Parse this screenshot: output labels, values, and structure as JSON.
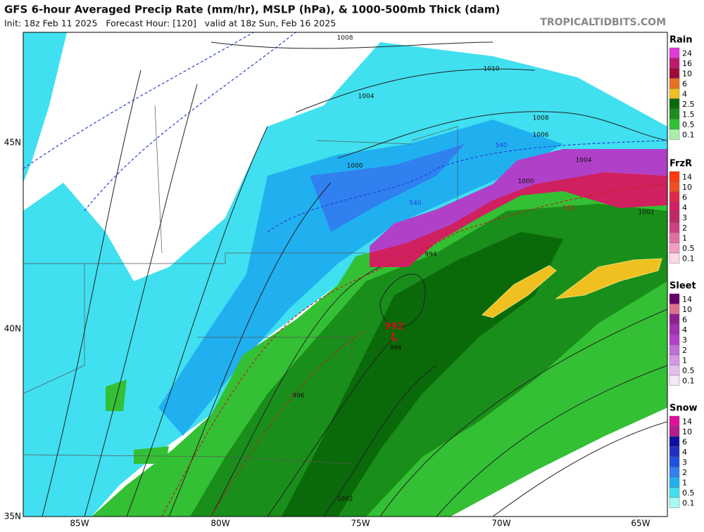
{
  "header": {
    "title": "GFS 6-hour Averaged Precip Rate (mm/hr), MSLP (hPa), & 1000-500mb Thick (dam)",
    "subtitle": "Init: 18z Feb 11 2025   Forecast Hour: [120]   valid at 18z Sun, Feb 16 2025",
    "site": "TROPICALTIDBITS.COM"
  },
  "map": {
    "lat_labels": [
      "45N",
      "40N",
      "35N"
    ],
    "lon_labels": [
      "85W",
      "80W",
      "75W",
      "70W",
      "65W"
    ],
    "isobar_labels": [
      "1008",
      "1010",
      "1004",
      "1006",
      "1008",
      "1000",
      "1004",
      "1000",
      "994",
      "992",
      "L",
      "994",
      "996",
      "1002",
      "1002"
    ],
    "thickness_labels": [
      "540",
      "540",
      "552"
    ]
  },
  "legend": [
    {
      "title": "Rain",
      "labels": [
        "24",
        "16",
        "10",
        "6",
        "4",
        "2.5",
        "1.5",
        "0.5",
        "0.1"
      ],
      "colors": [
        "#e03ad8",
        "#c01870",
        "#a00a3a",
        "#e87020",
        "#f0c020",
        "#0a6a0a",
        "#1a8e1a",
        "#34c034",
        "#a8f0a8"
      ]
    },
    {
      "title": "FrzR",
      "labels": [
        "14",
        "10",
        "6",
        "4",
        "3",
        "2",
        "1",
        "0.5",
        "0.1"
      ],
      "colors": [
        "#ff3a10",
        "#f05020",
        "#e02848",
        "#d02060",
        "#c02868",
        "#d04080",
        "#e070a0",
        "#f0a0c0",
        "#fcd8e8"
      ]
    },
    {
      "title": "Sleet",
      "labels": [
        "14",
        "10",
        "6",
        "4",
        "3",
        "2",
        "1",
        "0.5",
        "0.1"
      ],
      "colors": [
        "#6a006a",
        "#e07090",
        "#902090",
        "#a030b0",
        "#b040c8",
        "#c070d8",
        "#d498e4",
        "#e4c0f0",
        "#f4e8fa"
      ]
    },
    {
      "title": "Snow",
      "labels": [
        "14",
        "10",
        "6",
        "4",
        "3",
        "2",
        "1",
        "0.5",
        "0.1"
      ],
      "colors": [
        "#e0109a",
        "#b02088",
        "#1010a0",
        "#2030c0",
        "#2050e0",
        "#3080f0",
        "#20b0f0",
        "#40e0f0",
        "#a8f8f8"
      ]
    }
  ]
}
